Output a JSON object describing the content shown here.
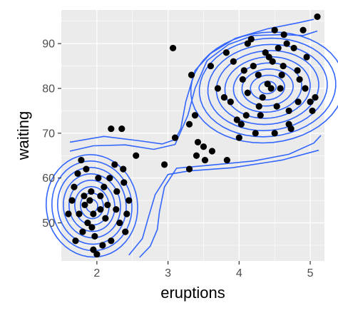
{
  "chart_data": {
    "type": "scatter",
    "subtype": "scatter with 2D density contours",
    "xlabel": "eruptions",
    "ylabel": "waiting",
    "xlim": [
      1.5,
      5.2
    ],
    "ylim": [
      41.5,
      97.5
    ],
    "x_ticks": [
      2,
      3,
      4,
      5
    ],
    "y_ticks": [
      50,
      60,
      70,
      80,
      90
    ],
    "grid": true,
    "legend": "none",
    "colors": {
      "panel": "#ebebeb",
      "grid_major": "#ffffff",
      "points": "#000000",
      "contours": "#3366ff",
      "axis_text": "#4d4d4d"
    },
    "points": [
      [
        2.2,
        71
      ],
      [
        3.1,
        69
      ],
      [
        3.33,
        83
      ],
      [
        3.38,
        74
      ],
      [
        3.5,
        67
      ],
      [
        3.62,
        66
      ],
      [
        3.42,
        68
      ],
      [
        3.3,
        72
      ],
      [
        3.3,
        62
      ],
      [
        3.52,
        64
      ],
      [
        3.4,
        65
      ],
      [
        3.83,
        64
      ],
      [
        2.95,
        63
      ],
      [
        3.07,
        89
      ],
      [
        2.55,
        65
      ],
      [
        2.35,
        71
      ],
      [
        1.6,
        52
      ],
      [
        1.78,
        64
      ],
      [
        2.0,
        43
      ],
      [
        2.38,
        59
      ],
      [
        5.1,
        96
      ],
      [
        4.12,
        90
      ],
      [
        4.9,
        93
      ],
      [
        4.5,
        93
      ],
      [
        3.82,
        88
      ],
      [
        4.7,
        75
      ],
      [
        5.03,
        75
      ],
      [
        4.05,
        82
      ],
      [
        4.58,
        80
      ],
      [
        4.33,
        78
      ],
      [
        4.45,
        80
      ],
      [
        4.62,
        85
      ],
      [
        4.23,
        70
      ],
      [
        4.03,
        72
      ],
      [
        4.67,
        90
      ],
      [
        4.73,
        71
      ],
      [
        4.93,
        80
      ],
      [
        5.07,
        78
      ],
      [
        4.82,
        84
      ],
      [
        3.92,
        86
      ],
      [
        3.88,
        77
      ],
      [
        4.17,
        91
      ],
      [
        4.37,
        88
      ],
      [
        4.27,
        83
      ],
      [
        4.1,
        74
      ],
      [
        4.53,
        76
      ],
      [
        4.83,
        77
      ],
      [
        4.4,
        81
      ],
      [
        4.6,
        83
      ],
      [
        4.12,
        79
      ],
      [
        4.28,
        76
      ],
      [
        3.97,
        73
      ],
      [
        4.47,
        86
      ],
      [
        4.77,
        89
      ],
      [
        3.7,
        80
      ],
      [
        3.79,
        78
      ],
      [
        4.2,
        85
      ],
      [
        4.95,
        87
      ],
      [
        5.0,
        77
      ],
      [
        4.7,
        72
      ],
      [
        4.5,
        70
      ],
      [
        4.0,
        69
      ],
      [
        4.3,
        74
      ],
      [
        4.63,
        92
      ],
      [
        3.6,
        85
      ],
      [
        4.85,
        82
      ],
      [
        4.07,
        84
      ],
      [
        4.42,
        87
      ],
      [
        4.55,
        89
      ],
      [
        1.83,
        54
      ],
      [
        1.95,
        52
      ],
      [
        1.87,
        50
      ],
      [
        1.75,
        52
      ],
      [
        2.05,
        56
      ],
      [
        1.92,
        57
      ],
      [
        2.15,
        54
      ],
      [
        2.27,
        53
      ],
      [
        1.8,
        48
      ],
      [
        1.97,
        47
      ],
      [
        2.08,
        45
      ],
      [
        2.32,
        50
      ],
      [
        2.4,
        48
      ],
      [
        2.2,
        46
      ],
      [
        1.68,
        58
      ],
      [
        1.73,
        61
      ],
      [
        1.85,
        62
      ],
      [
        2.02,
        60
      ],
      [
        2.28,
        57
      ],
      [
        2.18,
        60
      ],
      [
        2.45,
        55
      ],
      [
        2.37,
        62
      ],
      [
        1.9,
        55
      ],
      [
        1.93,
        49
      ],
      [
        2.12,
        51
      ],
      [
        1.82,
        56
      ],
      [
        2.05,
        53
      ],
      [
        2.25,
        63
      ],
      [
        1.7,
        46
      ],
      [
        1.95,
        44
      ],
      [
        2.42,
        52
      ],
      [
        1.65,
        55
      ],
      [
        2.1,
        58
      ]
    ],
    "contours": [
      {
        "level": "outer",
        "paths": [
          [
            [
              1.62,
              68
            ],
            [
              2.1,
              69.3
            ],
            [
              2.6,
              68.3
            ],
            [
              2.92,
              67.6
            ],
            [
              3.1,
              68.6
            ],
            [
              3.18,
              71
            ],
            [
              3.25,
              77
            ],
            [
              3.38,
              84
            ],
            [
              3.6,
              87.8
            ],
            [
              3.95,
              91.2
            ],
            [
              4.4,
              93.3
            ],
            [
              4.82,
              94.6
            ],
            [
              5.05,
              95.4
            ]
          ],
          [
            [
              5.1,
              92.8
            ],
            [
              4.9,
              91.8
            ],
            [
              4.6,
              92.0
            ],
            [
              4.2,
              91.8
            ],
            [
              3.85,
              89.8
            ],
            [
              3.55,
              86.2
            ],
            [
              3.38,
              80
            ],
            [
              3.28,
              74
            ],
            [
              3.1,
              67.5
            ],
            [
              2.8,
              66.4
            ],
            [
              2.4,
              67.4
            ],
            [
              1.95,
              67.2
            ],
            [
              1.62,
              66
            ]
          ],
          [
            [
              2.6,
              42.3
            ],
            [
              2.75,
              44.8
            ],
            [
              2.85,
              48.5
            ],
            [
              2.88,
              52.5
            ],
            [
              2.95,
              58
            ],
            [
              3.12,
              62.2
            ],
            [
              3.55,
              62.8
            ],
            [
              4.2,
              63.8
            ],
            [
              4.7,
              65.3
            ],
            [
              5.05,
              67.8
            ],
            [
              5.15,
              69.5
            ]
          ],
          [
            [
              2.45,
              42.8
            ],
            [
              2.64,
              46.5
            ],
            [
              2.72,
              51
            ],
            [
              2.82,
              56.3
            ],
            [
              3.0,
              60.8
            ],
            [
              3.3,
              61.6
            ],
            [
              3.9,
              62.3
            ],
            [
              4.6,
              64
            ],
            [
              5.12,
              66.2
            ]
          ]
        ]
      }
    ]
  }
}
